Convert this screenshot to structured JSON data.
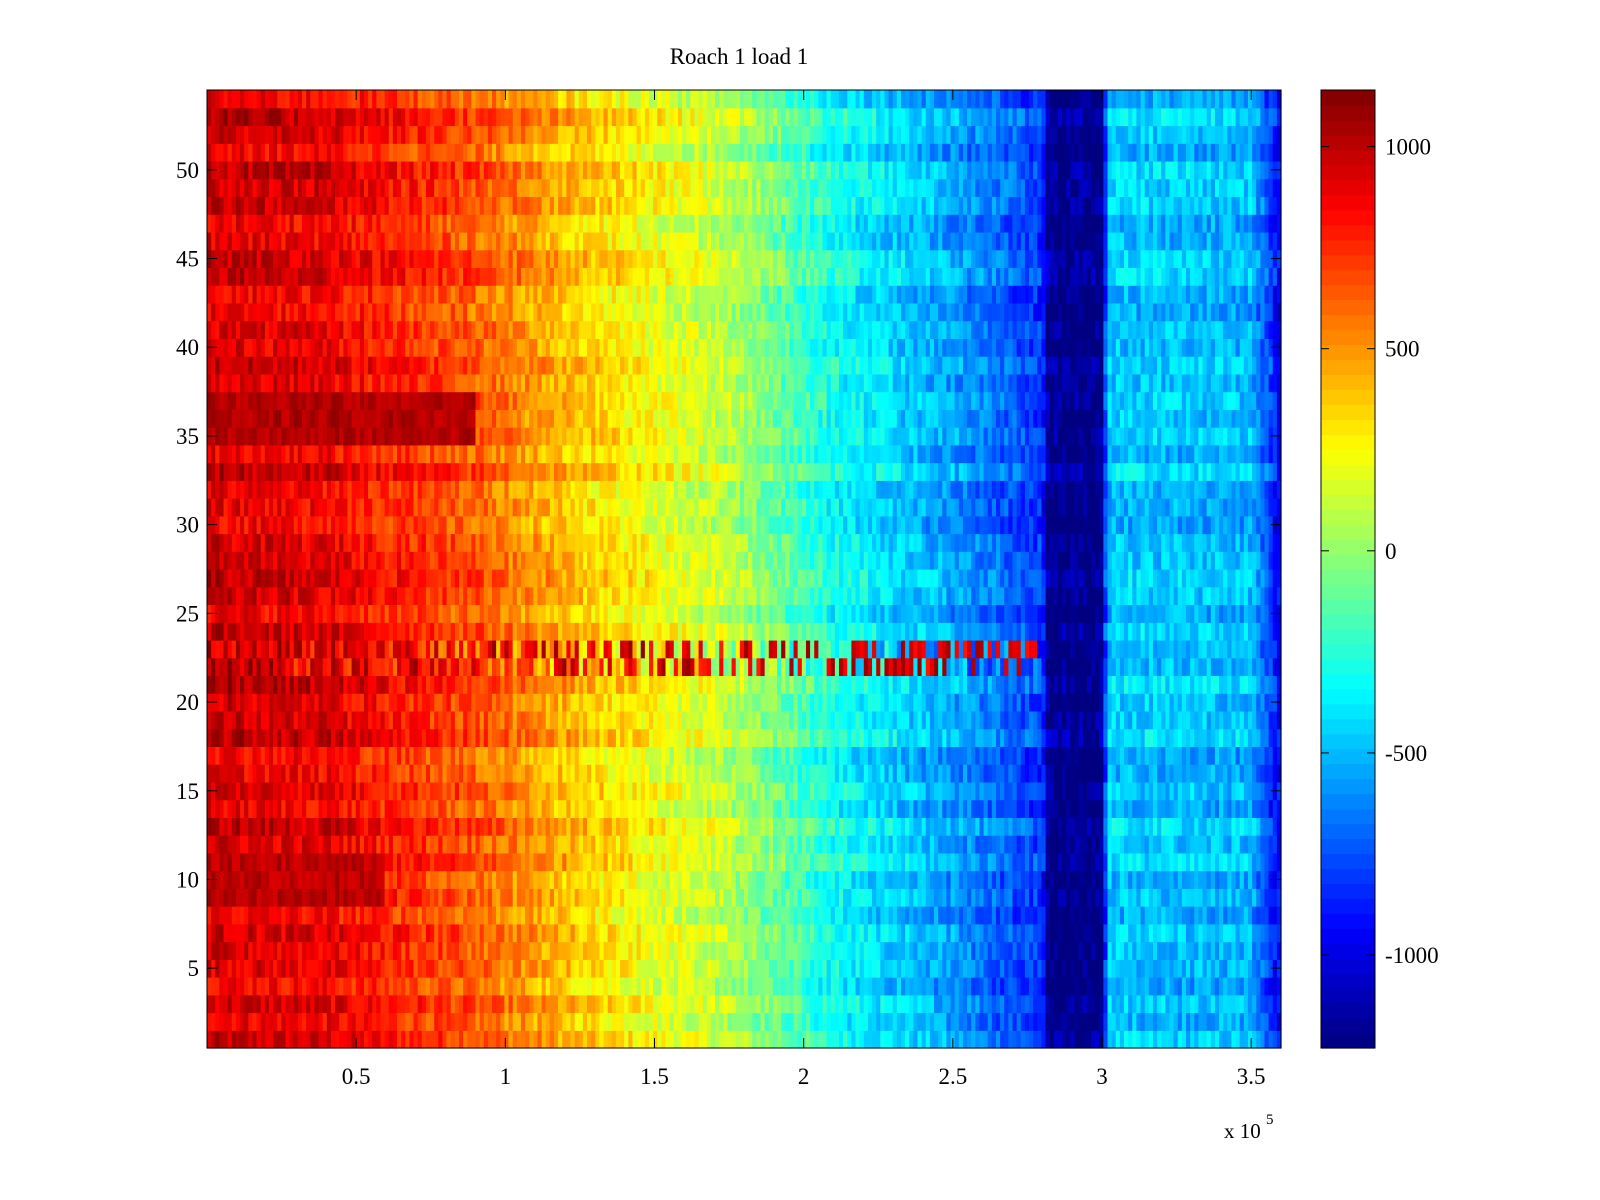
{
  "chart_data": {
    "type": "heatmap",
    "title": "Roach 1 load 1",
    "xlabel": "",
    "ylabel": "",
    "x_multiplier_label": "x 10",
    "x_multiplier_exponent": "5",
    "xlim": [
      0,
      360000
    ],
    "ylim": [
      0.5,
      54.5
    ],
    "x_ticks": [
      {
        "value": 50000,
        "label": "0.5"
      },
      {
        "value": 100000,
        "label": "1"
      },
      {
        "value": 150000,
        "label": "1.5"
      },
      {
        "value": 200000,
        "label": "2"
      },
      {
        "value": 250000,
        "label": "2.5"
      },
      {
        "value": 300000,
        "label": "3"
      },
      {
        "value": 350000,
        "label": "3.5"
      }
    ],
    "y_ticks": [
      {
        "value": 5,
        "label": "5"
      },
      {
        "value": 10,
        "label": "10"
      },
      {
        "value": 15,
        "label": "15"
      },
      {
        "value": 20,
        "label": "20"
      },
      {
        "value": 25,
        "label": "25"
      },
      {
        "value": 30,
        "label": "30"
      },
      {
        "value": 35,
        "label": "35"
      },
      {
        "value": 40,
        "label": "40"
      },
      {
        "value": 45,
        "label": "45"
      },
      {
        "value": 50,
        "label": "50"
      }
    ],
    "rows": 54,
    "colormap": "jet",
    "clim": [
      -1230,
      1140
    ],
    "colorbar_ticks": [
      {
        "value": 1000,
        "label": "1000"
      },
      {
        "value": 500,
        "label": "500"
      },
      {
        "value": 0,
        "label": "0"
      },
      {
        "value": -500,
        "label": "-500"
      },
      {
        "value": -1000,
        "label": "-1000"
      }
    ],
    "column_profile": [
      {
        "x": 0,
        "value": 950
      },
      {
        "x": 40000,
        "value": 900
      },
      {
        "x": 90000,
        "value": 650
      },
      {
        "x": 130000,
        "value": 350
      },
      {
        "x": 175000,
        "value": 100
      },
      {
        "x": 210000,
        "value": -300
      },
      {
        "x": 250000,
        "value": -550
      },
      {
        "x": 280000,
        "value": -800
      },
      {
        "x": 282000,
        "value": -1200
      },
      {
        "x": 300000,
        "value": -1200
      },
      {
        "x": 302000,
        "value": -450
      },
      {
        "x": 350000,
        "value": -500
      },
      {
        "x": 360000,
        "value": -950
      }
    ],
    "row_features": [
      {
        "rows": [
          22,
          23
        ],
        "description": "alternating high/low band",
        "value_range": [
          -1000,
          1100
        ]
      },
      {
        "rows": [
          35,
          37
        ],
        "x_range": [
          0,
          90000
        ],
        "value": 1100
      },
      {
        "rows": [
          9,
          11
        ],
        "x_range": [
          0,
          60000
        ],
        "value": 1080
      }
    ],
    "grid": false,
    "colorbar_position": "right"
  }
}
